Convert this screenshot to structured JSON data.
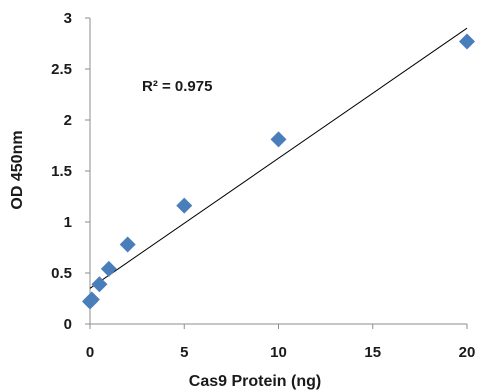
{
  "chart_data": {
    "type": "scatter",
    "title": "",
    "xlabel": "Cas9 Protein (ng)",
    "ylabel": "OD 450nm",
    "xlim": [
      0,
      20
    ],
    "ylim": [
      0,
      3
    ],
    "xticks": [
      0,
      5,
      10,
      15,
      20
    ],
    "yticks": [
      0,
      0.5,
      1,
      1.5,
      2,
      2.5,
      3
    ],
    "grid": false,
    "legend": "none",
    "series": [
      {
        "marker": "diamond",
        "color": "#4a7ebb",
        "points": [
          {
            "x": 0,
            "y": 0.22
          },
          {
            "x": 0.1,
            "y": 0.24
          },
          {
            "x": 0.5,
            "y": 0.39
          },
          {
            "x": 1,
            "y": 0.54
          },
          {
            "x": 2,
            "y": 0.78
          },
          {
            "x": 5,
            "y": 1.16
          },
          {
            "x": 10,
            "y": 1.81
          },
          {
            "x": 20,
            "y": 2.77
          }
        ]
      }
    ],
    "trendline": {
      "type": "linear",
      "color": "#000000",
      "x": [
        0,
        20
      ],
      "y": [
        0.35,
        2.9
      ]
    },
    "annotations": [
      {
        "text": "R² = 0.975"
      }
    ]
  }
}
